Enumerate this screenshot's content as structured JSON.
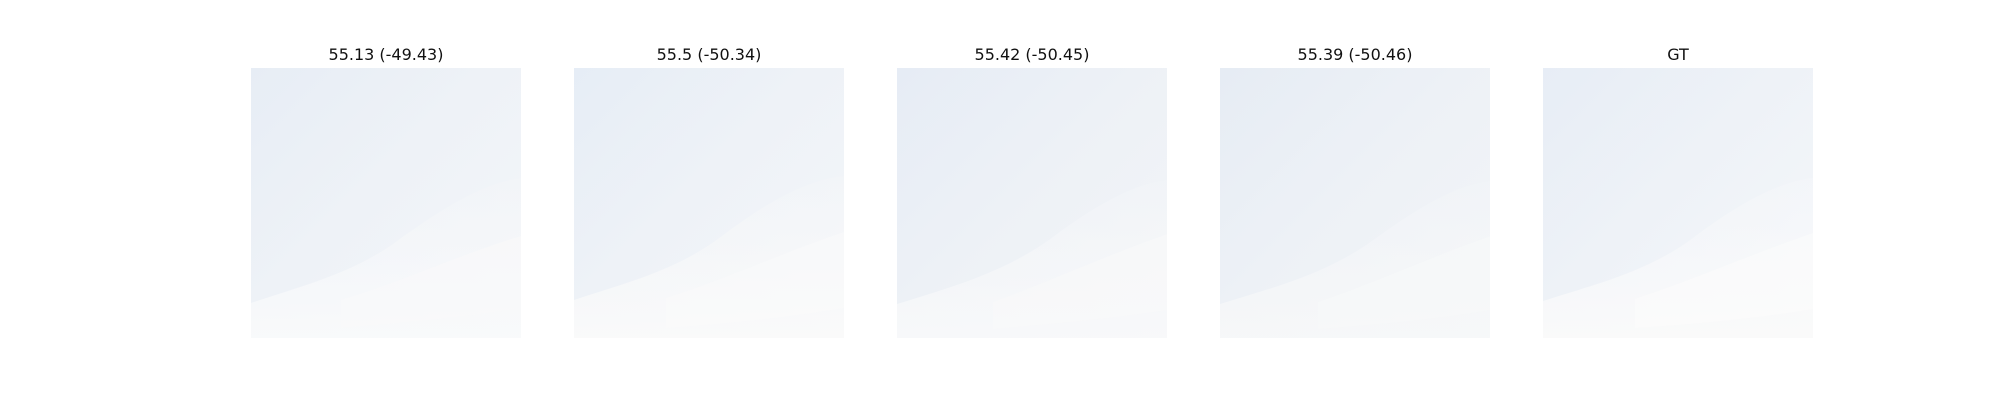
{
  "panels": [
    {
      "title": "55.13 (-49.43)"
    },
    {
      "title": "55.5 (-50.34)"
    },
    {
      "title": "55.42 (-50.45)"
    },
    {
      "title": "55.39 (-50.46)"
    },
    {
      "title": "GT"
    }
  ],
  "colors": {
    "sky_top": "#e8eef5",
    "sky_mid": "#f0f3f7",
    "cloud_light": "#fafafa",
    "background": "#ffffff"
  }
}
